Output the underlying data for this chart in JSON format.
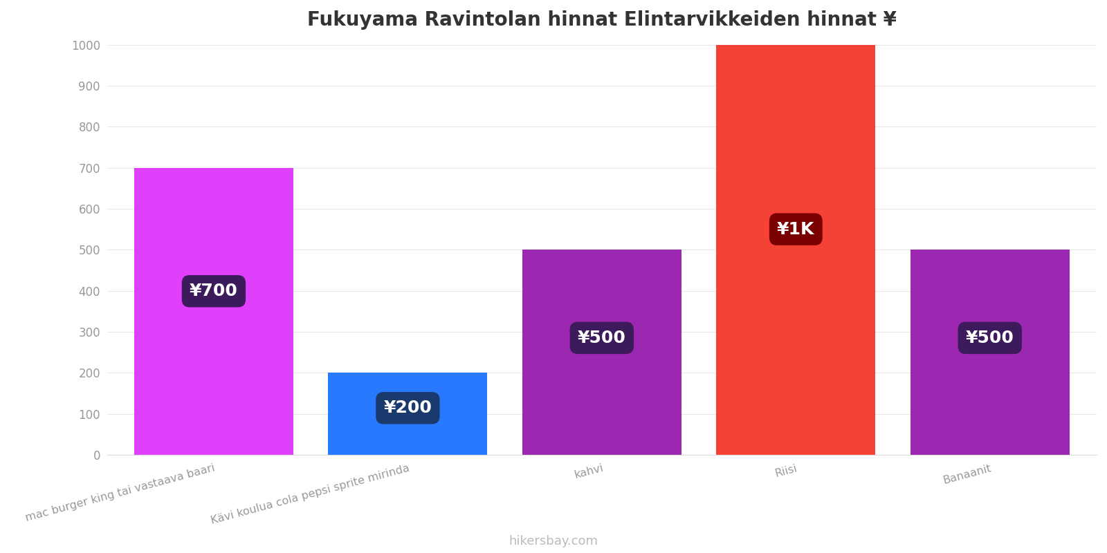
{
  "title": "Fukuyama Ravintolan hinnat Elintarvikkeiden hinnat ¥",
  "categories": [
    "mac burger king tai vastaava baari",
    "Kävi koulua cola pepsi sprite mirinda",
    "kahvi",
    "Riisi",
    "Banaanit"
  ],
  "values": [
    700,
    200,
    500,
    1000,
    500
  ],
  "bar_colors": [
    "#e040fb",
    "#2979ff",
    "#9c27b0",
    "#f44336",
    "#9c27b0"
  ],
  "label_texts": [
    "¥700",
    "¥200",
    "¥500",
    "¥1K",
    "¥500"
  ],
  "label_bg_colors": [
    "#3d1a5c",
    "#1a3a6e",
    "#3d1a5c",
    "#7b0000",
    "#3d1a5c"
  ],
  "ylim": [
    0,
    1000
  ],
  "yticks": [
    0,
    100,
    200,
    300,
    400,
    500,
    600,
    700,
    800,
    900,
    1000
  ],
  "background_color": "#ffffff",
  "grid_color": "#e8e8e8",
  "title_fontsize": 20,
  "tick_label_color": "#999999",
  "watermark": "hikersbay.com",
  "bar_width": 0.82,
  "label_fontsize": 18
}
